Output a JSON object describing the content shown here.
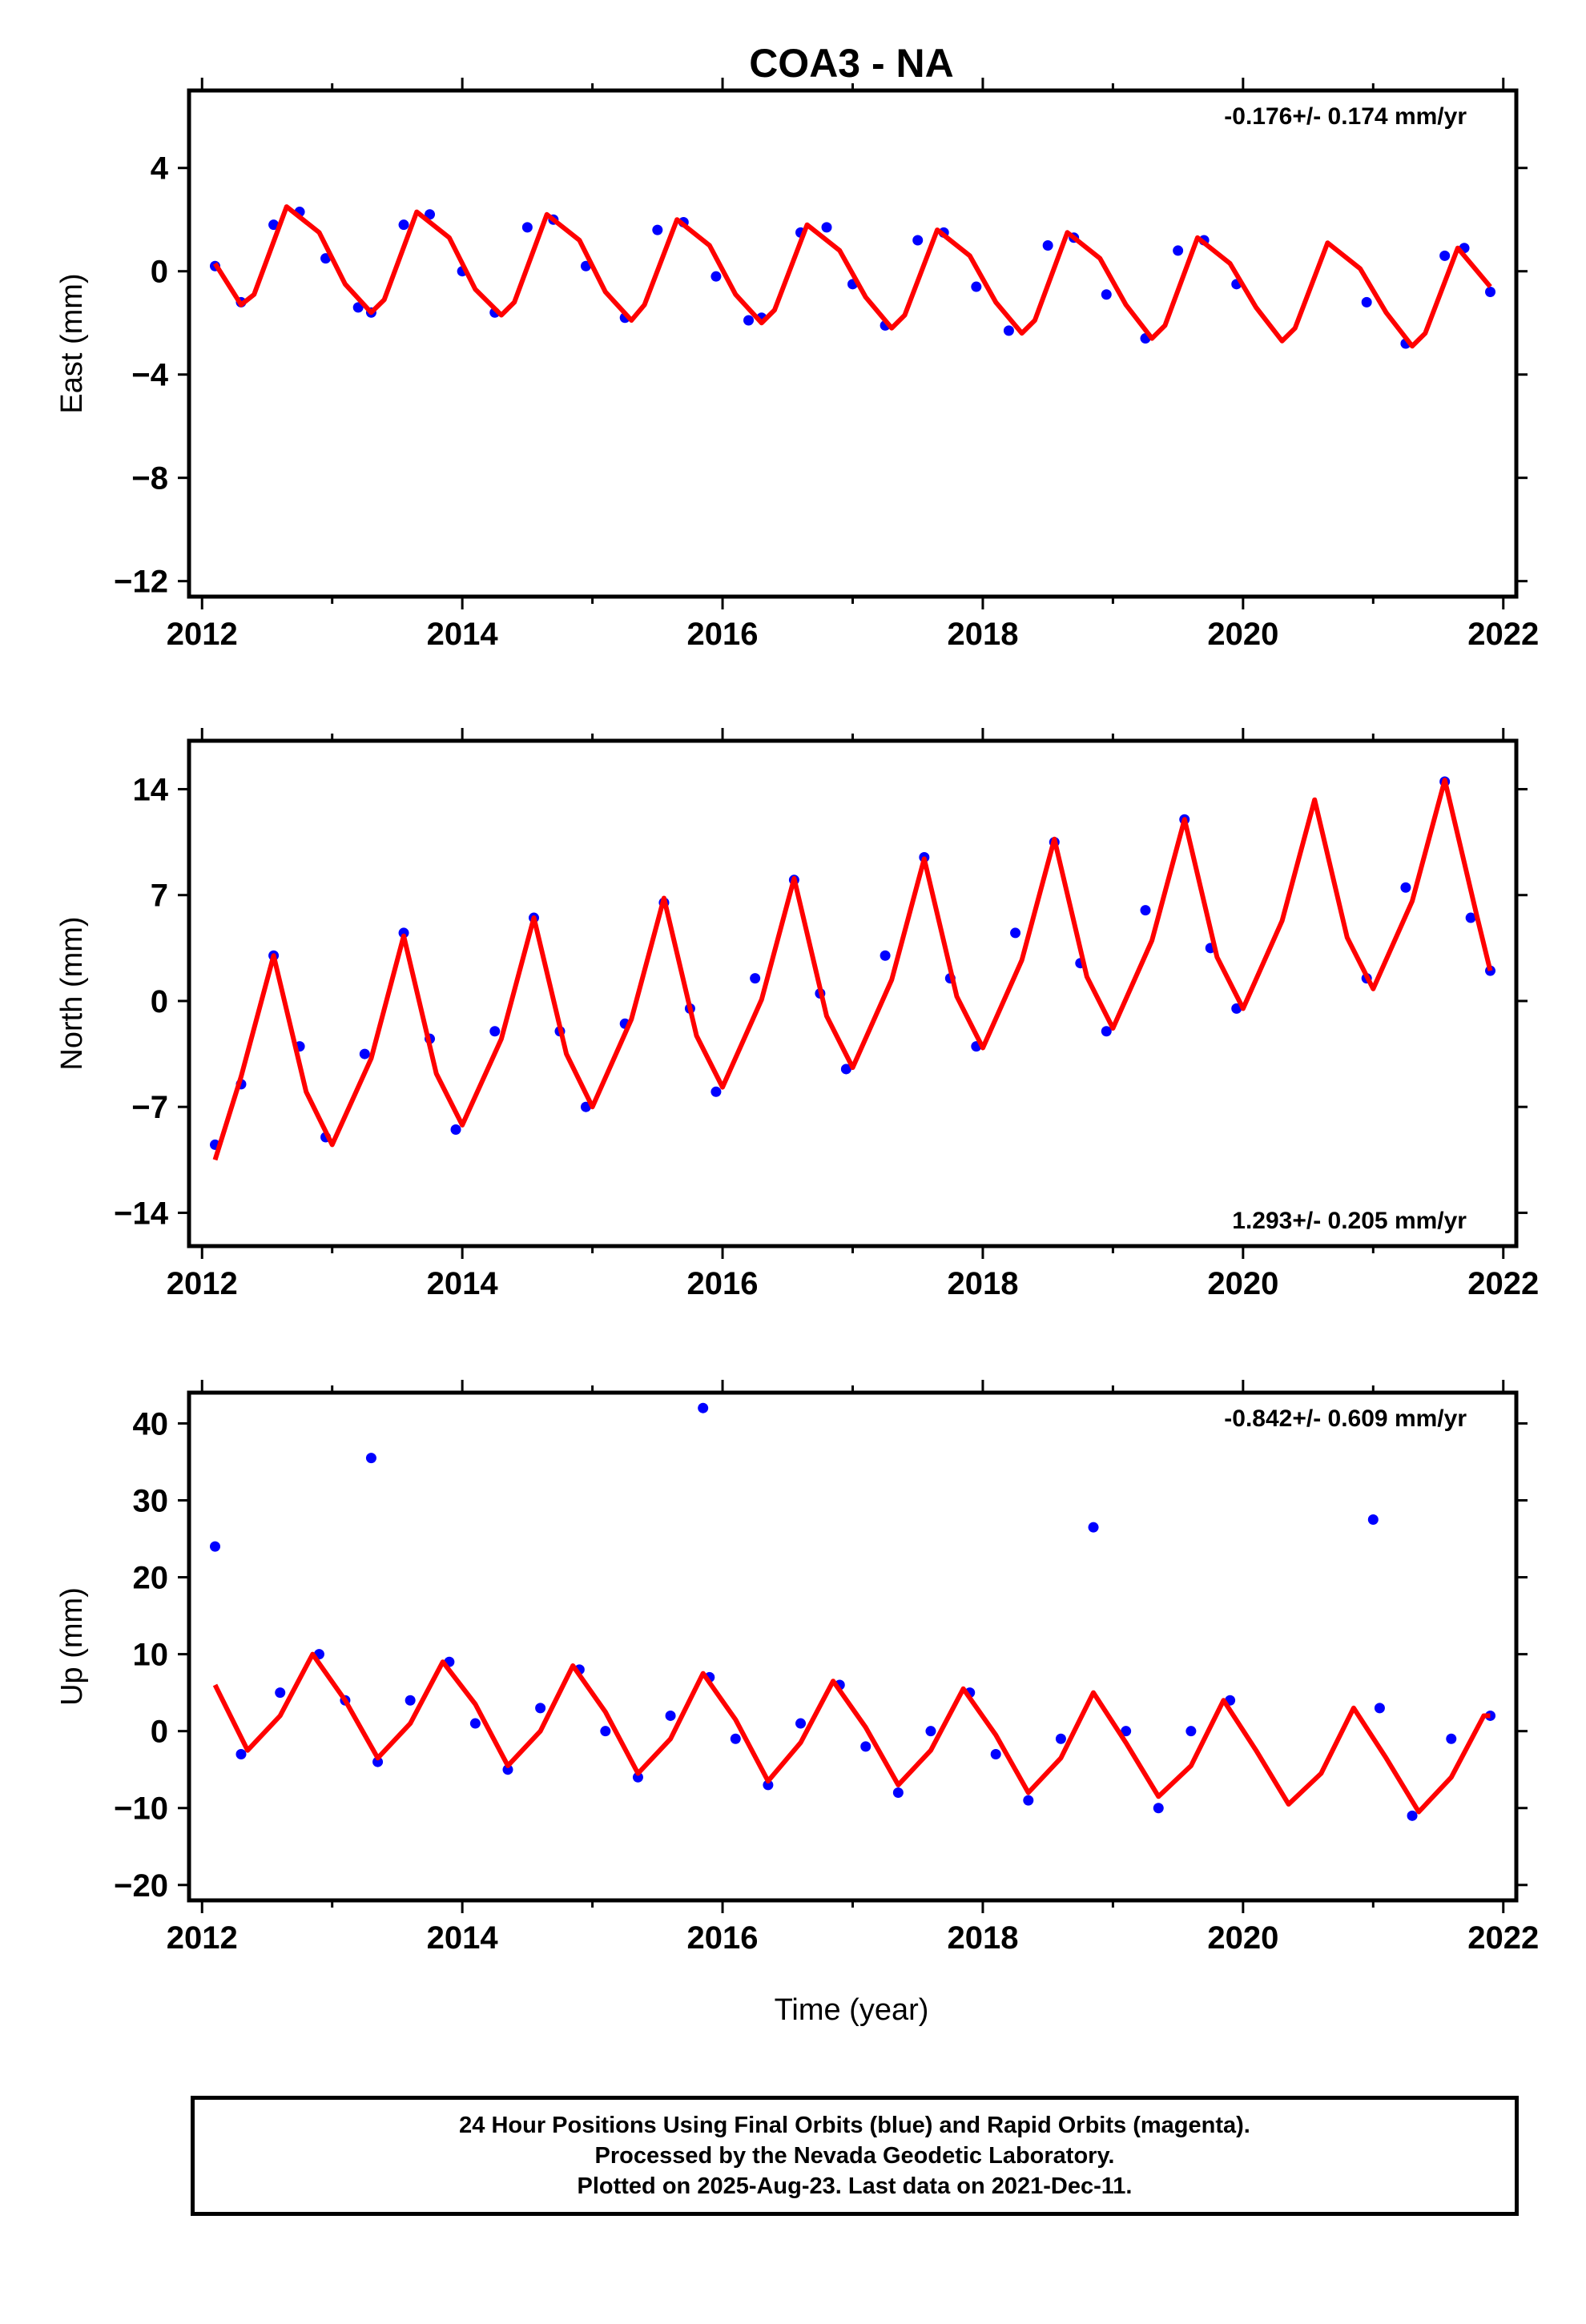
{
  "title": "COA3 - NA",
  "xlabel": "Time (year)",
  "footer": {
    "line1": "24 Hour Positions Using Final Orbits (blue) and Rapid Orbits (magenta).",
    "line2": "Processed by the Nevada Geodetic Laboratory.",
    "line3": "Plotted on 2025-Aug-23. Last data on 2021-Dec-11."
  },
  "colors": {
    "observations": "#0000ff",
    "model": "#ff0000",
    "axes": "#000000"
  },
  "chart_data": [
    {
      "type": "scatter",
      "ylabel": "East (mm)",
      "rate_label": "-0.176+/- 0.174 mm/yr",
      "xlim": [
        2011.9,
        2022.1
      ],
      "ylim": [
        -12.6,
        7.0
      ],
      "x_ticks": [
        2012,
        2014,
        2016,
        2018,
        2020,
        2022
      ],
      "y_ticks": [
        4,
        0,
        -4,
        -8,
        -12
      ],
      "y_tick_labels": [
        "4",
        "0",
        "−4",
        "−8",
        "−12"
      ],
      "series": [
        {
          "kind": "points",
          "x": [
            2012.1,
            2012.3,
            2012.55,
            2012.75,
            2012.95,
            2013.2,
            2013.3,
            2013.55,
            2013.75,
            2014.0,
            2014.25,
            2014.5,
            2014.7,
            2014.95,
            2015.25,
            2015.5,
            2015.7,
            2015.95,
            2016.2,
            2016.3,
            2016.6,
            2016.8,
            2017.0,
            2017.25,
            2017.5,
            2017.7,
            2017.95,
            2018.2,
            2018.5,
            2018.7,
            2018.95,
            2019.25,
            2019.5,
            2019.7,
            2019.95,
            2020.95,
            2021.25,
            2021.55,
            2021.7,
            2021.9
          ],
          "y": [
            0.2,
            -1.2,
            1.8,
            2.3,
            0.5,
            -1.4,
            -1.6,
            1.8,
            2.2,
            0.0,
            -1.6,
            1.7,
            2.0,
            0.2,
            -1.8,
            1.6,
            1.9,
            -0.2,
            -1.9,
            -1.8,
            1.5,
            1.7,
            -0.5,
            -2.1,
            1.2,
            1.5,
            -0.6,
            -2.3,
            1.0,
            1.3,
            -0.9,
            -2.6,
            0.8,
            1.2,
            -0.5,
            -1.2,
            -2.8,
            0.6,
            0.9,
            -0.8
          ]
        },
        {
          "kind": "model",
          "x": [
            2012.1,
            2012.3,
            2012.4,
            2012.65,
            2012.9,
            2013.1,
            2013.3,
            2013.4,
            2013.65,
            2013.9,
            2014.1,
            2014.3,
            2014.4,
            2014.65,
            2014.9,
            2015.1,
            2015.3,
            2015.4,
            2015.65,
            2015.9,
            2016.1,
            2016.3,
            2016.4,
            2016.65,
            2016.9,
            2017.1,
            2017.3,
            2017.4,
            2017.65,
            2017.9,
            2018.1,
            2018.3,
            2018.4,
            2018.65,
            2018.9,
            2019.1,
            2019.3,
            2019.4,
            2019.65,
            2019.9,
            2020.1,
            2020.3,
            2020.4,
            2020.65,
            2020.9,
            2021.1,
            2021.3,
            2021.4,
            2021.65,
            2021.9
          ],
          "y": [
            0.3,
            -1.3,
            -0.9,
            2.5,
            1.5,
            -0.5,
            -1.6,
            -1.1,
            2.3,
            1.3,
            -0.7,
            -1.7,
            -1.2,
            2.2,
            1.2,
            -0.8,
            -1.9,
            -1.3,
            2.0,
            1.0,
            -0.9,
            -2.0,
            -1.5,
            1.8,
            0.8,
            -1.0,
            -2.2,
            -1.7,
            1.6,
            0.6,
            -1.2,
            -2.4,
            -1.9,
            1.5,
            0.5,
            -1.3,
            -2.6,
            -2.1,
            1.3,
            0.3,
            -1.4,
            -2.7,
            -2.2,
            1.1,
            0.1,
            -1.6,
            -2.9,
            -2.4,
            0.9,
            -0.6
          ]
        }
      ]
    },
    {
      "type": "scatter",
      "ylabel": "North (mm)",
      "rate_label": "1.293+/- 0.205 mm/yr",
      "xlim": [
        2011.9,
        2022.1
      ],
      "ylim": [
        -16.2,
        17.2
      ],
      "x_ticks": [
        2012,
        2014,
        2016,
        2018,
        2020,
        2022
      ],
      "y_ticks": [
        14,
        7,
        0,
        -7,
        -14
      ],
      "y_tick_labels": [
        "14",
        "7",
        "0",
        "−7",
        "−14"
      ],
      "series": [
        {
          "kind": "points",
          "x": [
            2012.1,
            2012.3,
            2012.55,
            2012.75,
            2012.95,
            2013.25,
            2013.55,
            2013.75,
            2013.95,
            2014.25,
            2014.55,
            2014.75,
            2014.95,
            2015.25,
            2015.55,
            2015.75,
            2015.95,
            2016.25,
            2016.55,
            2016.75,
            2016.95,
            2017.25,
            2017.55,
            2017.75,
            2017.95,
            2018.25,
            2018.55,
            2018.75,
            2018.95,
            2019.25,
            2019.55,
            2019.75,
            2019.95,
            2020.95,
            2021.25,
            2021.55,
            2021.75,
            2021.9
          ],
          "y": [
            -9.5,
            -5.5,
            3.0,
            -3.0,
            -9.0,
            -3.5,
            4.5,
            -2.5,
            -8.5,
            -2.0,
            5.5,
            -2.0,
            -7.0,
            -1.5,
            6.5,
            -0.5,
            -6.0,
            1.5,
            8.0,
            0.5,
            -4.5,
            3.0,
            9.5,
            1.5,
            -3.0,
            4.5,
            10.5,
            2.5,
            -2.0,
            6.0,
            12.0,
            3.5,
            -0.5,
            1.5,
            7.5,
            14.5,
            5.5,
            2.0
          ]
        },
        {
          "kind": "model",
          "x": [
            2012.1,
            2012.3,
            2012.55,
            2012.8,
            2013.0,
            2013.3,
            2013.55,
            2013.8,
            2014.0,
            2014.3,
            2014.55,
            2014.8,
            2015.0,
            2015.3,
            2015.55,
            2015.8,
            2016.0,
            2016.3,
            2016.55,
            2016.8,
            2017.0,
            2017.3,
            2017.55,
            2017.8,
            2018.0,
            2018.3,
            2018.55,
            2018.8,
            2019.0,
            2019.3,
            2019.55,
            2019.8,
            2020.0,
            2020.3,
            2020.55,
            2020.8,
            2021.0,
            2021.3,
            2021.55,
            2021.8,
            2021.9
          ],
          "y": [
            -10.5,
            -5.0,
            3.0,
            -6.0,
            -9.5,
            -3.8,
            4.3,
            -4.8,
            -8.2,
            -2.5,
            5.5,
            -3.5,
            -7.0,
            -1.2,
            6.8,
            -2.3,
            -5.7,
            0.1,
            8.1,
            -1.0,
            -4.4,
            1.4,
            9.4,
            0.3,
            -3.1,
            2.7,
            10.7,
            1.6,
            -1.8,
            4.0,
            12.0,
            2.9,
            -0.5,
            5.3,
            13.3,
            4.2,
            0.8,
            6.6,
            14.6,
            5.5,
            2.0
          ]
        }
      ]
    },
    {
      "type": "scatter",
      "ylabel": "Up (mm)",
      "rate_label": "-0.842+/- 0.609 mm/yr",
      "xlim": [
        2011.9,
        2022.1
      ],
      "ylim": [
        -22.0,
        44.0
      ],
      "x_ticks": [
        2012,
        2014,
        2016,
        2018,
        2020,
        2022
      ],
      "y_ticks": [
        40,
        30,
        20,
        10,
        0,
        -10,
        -20
      ],
      "y_tick_labels": [
        "40",
        "30",
        "20",
        "10",
        "0",
        "−10",
        "−20"
      ],
      "series": [
        {
          "kind": "points",
          "x": [
            2012.1,
            2012.3,
            2012.6,
            2012.9,
            2013.1,
            2013.3,
            2013.35,
            2013.6,
            2013.9,
            2014.1,
            2014.35,
            2014.6,
            2014.9,
            2015.1,
            2015.35,
            2015.6,
            2015.85,
            2015.9,
            2016.1,
            2016.35,
            2016.6,
            2016.9,
            2017.1,
            2017.35,
            2017.6,
            2017.9,
            2018.1,
            2018.35,
            2018.6,
            2018.85,
            2019.1,
            2019.35,
            2019.6,
            2019.9,
            2021.0,
            2021.05,
            2021.3,
            2021.6,
            2021.9
          ],
          "y": [
            24.0,
            -3.0,
            5.0,
            10.0,
            4.0,
            35.5,
            -4.0,
            4.0,
            9.0,
            1.0,
            -5.0,
            3.0,
            8.0,
            0.0,
            -6.0,
            2.0,
            42.0,
            7.0,
            -1.0,
            -7.0,
            1.0,
            6.0,
            -2.0,
            -8.0,
            0.0,
            5.0,
            -3.0,
            -9.0,
            -1.0,
            26.5,
            0.0,
            -10.0,
            0.0,
            4.0,
            27.5,
            3.0,
            -11.0,
            -1.0,
            2.0
          ]
        },
        {
          "kind": "model",
          "x": [
            2012.1,
            2012.35,
            2012.6,
            2012.85,
            2013.1,
            2013.35,
            2013.6,
            2013.85,
            2014.1,
            2014.35,
            2014.6,
            2014.85,
            2015.1,
            2015.35,
            2015.6,
            2015.85,
            2016.1,
            2016.35,
            2016.6,
            2016.85,
            2017.1,
            2017.35,
            2017.6,
            2017.85,
            2018.1,
            2018.35,
            2018.6,
            2018.85,
            2019.1,
            2019.35,
            2019.6,
            2019.85,
            2020.1,
            2020.35,
            2020.6,
            2020.85,
            2021.1,
            2021.35,
            2021.6,
            2021.85,
            2021.9
          ],
          "y": [
            6.0,
            -2.5,
            2.0,
            10.0,
            4.0,
            -3.5,
            1.0,
            9.0,
            3.5,
            -4.5,
            0.0,
            8.5,
            2.5,
            -5.5,
            -1.0,
            7.5,
            1.5,
            -6.5,
            -1.5,
            6.5,
            0.5,
            -7.0,
            -2.5,
            5.5,
            -0.5,
            -8.0,
            -3.5,
            5.0,
            -1.5,
            -8.5,
            -4.5,
            4.0,
            -2.5,
            -9.5,
            -5.5,
            3.0,
            -3.5,
            -10.5,
            -6.0,
            2.0,
            2.0
          ]
        }
      ]
    }
  ]
}
